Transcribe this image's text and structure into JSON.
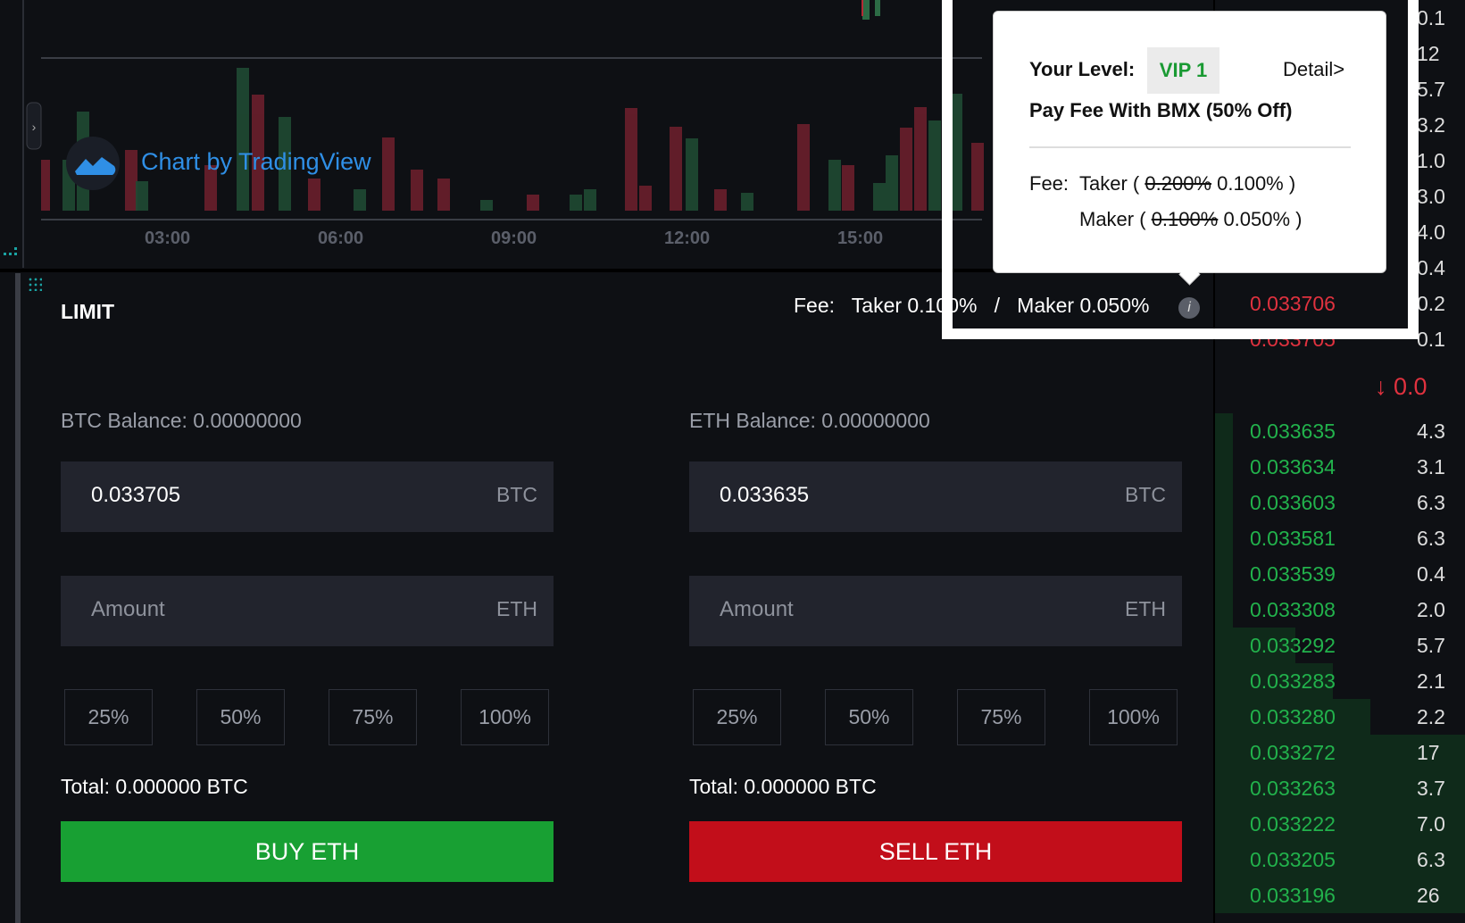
{
  "chart": {
    "time_labels": [
      "03:00",
      "06:00",
      "09:00",
      "12:00",
      "15:00"
    ],
    "watermark": "Chart by TradingView"
  },
  "order_form": {
    "title": "LIMIT",
    "fee_label": "Fee:",
    "fee_taker": "Taker 0.100%",
    "separator": "/",
    "fee_maker": "Maker 0.050%",
    "buy": {
      "balance": "BTC Balance: 0.00000000",
      "price": "0.033705",
      "price_unit": "BTC",
      "amount_placeholder": "Amount",
      "amount_unit": "ETH",
      "percents": [
        "25%",
        "50%",
        "75%",
        "100%"
      ],
      "total": "Total: 0.000000 BTC",
      "button": "BUY ETH"
    },
    "sell": {
      "balance": "ETH Balance: 0.00000000",
      "price": "0.033635",
      "price_unit": "BTC",
      "amount_placeholder": "Amount",
      "amount_unit": "ETH",
      "percents": [
        "25%",
        "50%",
        "75%",
        "100%"
      ],
      "total": "Total: 0.000000 BTC",
      "button": "SELL ETH"
    }
  },
  "fee_popup": {
    "level_label": "Your Level:",
    "level": "VIP 1",
    "detail": "Detail>",
    "pay_fee": "Pay Fee With BMX (50% Off)",
    "fee_label": "Fee:",
    "taker_label": "Taker (",
    "taker_old": "0.200%",
    "taker_new": "0.100% )",
    "maker_label": "Maker (",
    "maker_old": "0.100%",
    "maker_new": "0.050% )"
  },
  "order_book": {
    "asks": [
      {
        "price": null,
        "amount": "0.1"
      },
      {
        "price": null,
        "amount": "12"
      },
      {
        "price": null,
        "amount": "5.7"
      },
      {
        "price": null,
        "amount": "3.2"
      },
      {
        "price": null,
        "amount": "1.0"
      },
      {
        "price": null,
        "amount": "3.0"
      },
      {
        "price": null,
        "amount": "4.0"
      },
      {
        "price": null,
        "amount": "0.4"
      },
      {
        "price": "0.033706",
        "amount": "0.2"
      },
      {
        "price": "0.033705",
        "amount": "0.1"
      }
    ],
    "last_price": "↓ 0.0",
    "bids": [
      {
        "price": "0.033635",
        "amount": "4.3"
      },
      {
        "price": "0.033634",
        "amount": "3.1"
      },
      {
        "price": "0.033603",
        "amount": "6.3"
      },
      {
        "price": "0.033581",
        "amount": "6.3"
      },
      {
        "price": "0.033539",
        "amount": "0.4"
      },
      {
        "price": "0.033308",
        "amount": "2.0"
      },
      {
        "price": "0.033292",
        "amount": "5.7"
      },
      {
        "price": "0.033283",
        "amount": "2.1"
      },
      {
        "price": "0.033280",
        "amount": "2.2"
      },
      {
        "price": "0.033272",
        "amount": "17"
      },
      {
        "price": "0.033263",
        "amount": "3.7"
      },
      {
        "price": "0.033222",
        "amount": "7.0"
      },
      {
        "price": "0.033205",
        "amount": "6.3"
      },
      {
        "price": "0.033196",
        "amount": "26"
      }
    ]
  }
}
